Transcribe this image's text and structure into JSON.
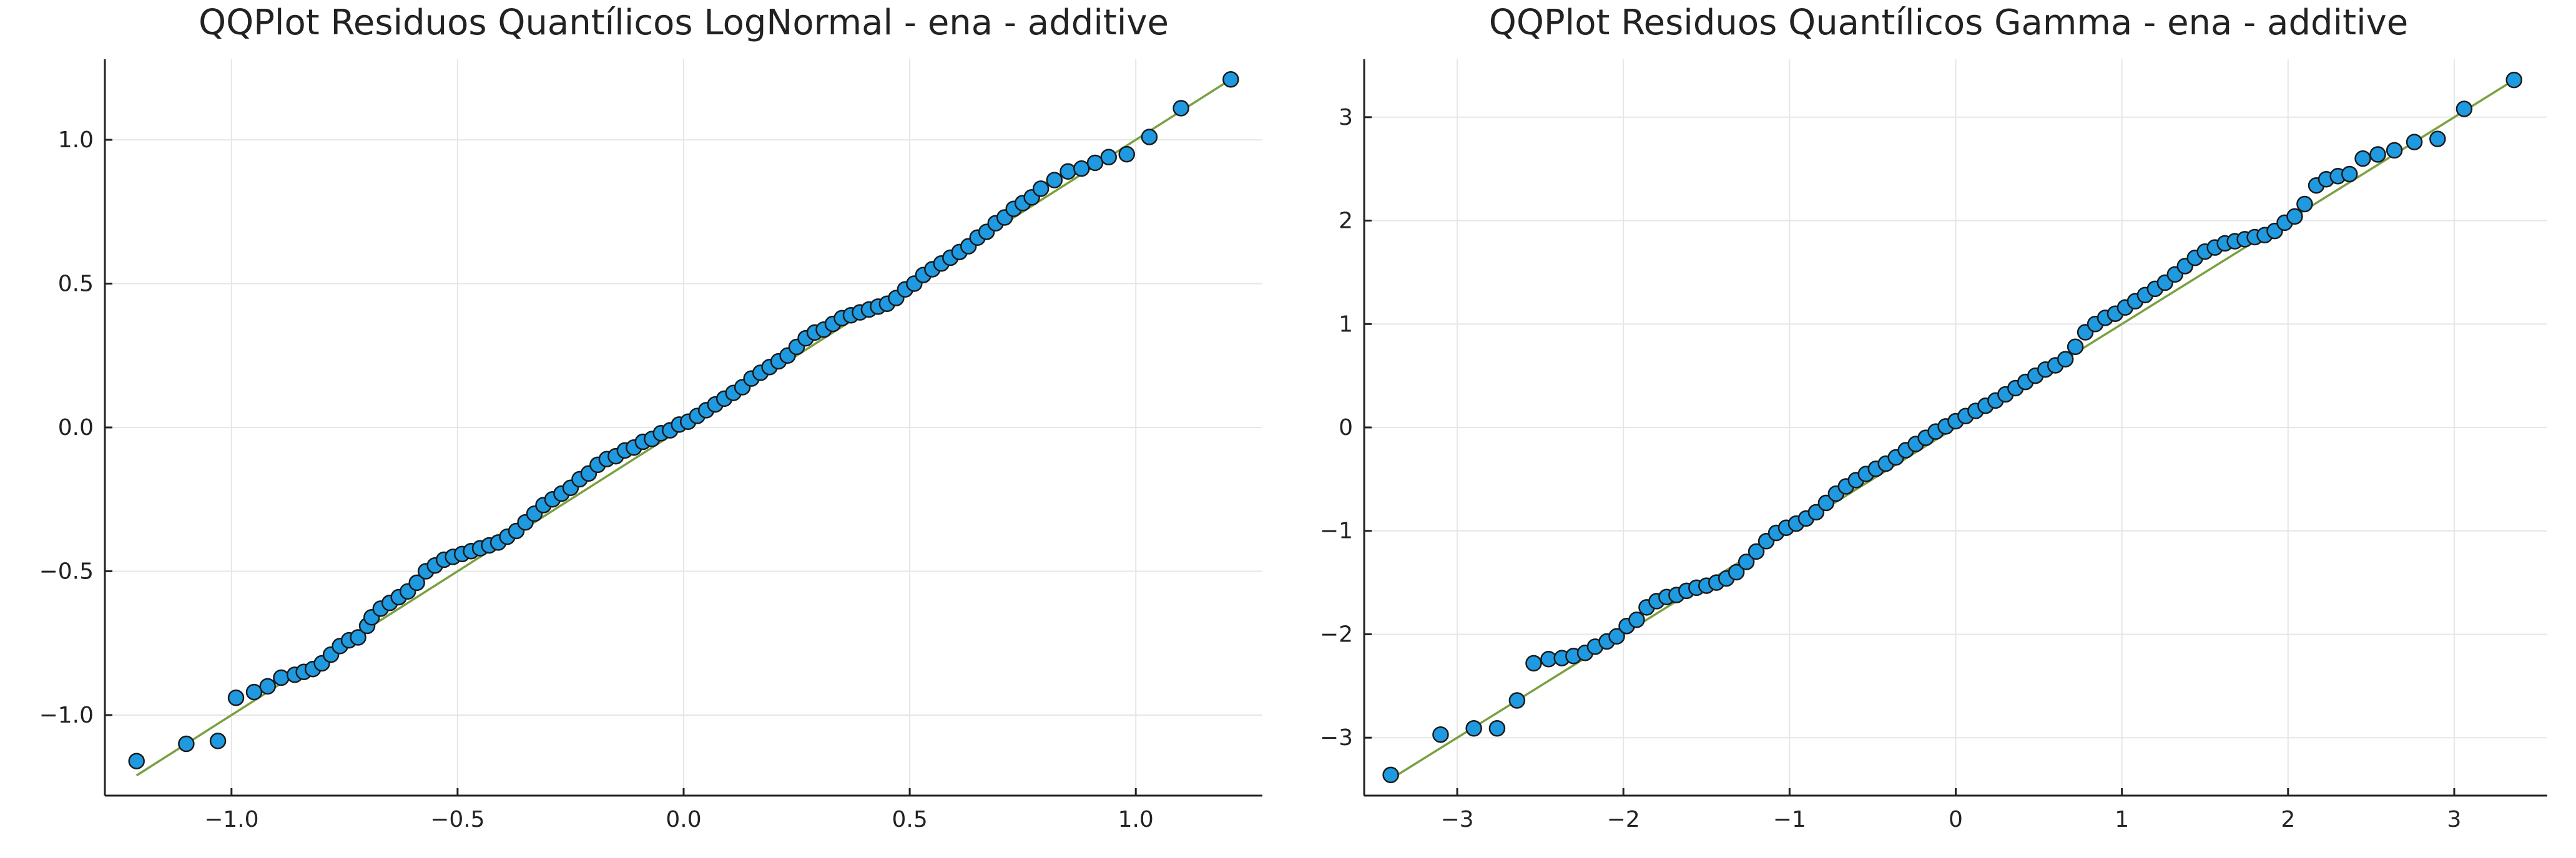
{
  "colors": {
    "points": "#1f9ae0",
    "point_edge": "#1a1a1a",
    "reference_line": "#7aa040",
    "grid": "#e6e6e6"
  },
  "chart_data": [
    {
      "type": "scatter",
      "title": "QQPlot Residuos Quantílicos LogNormal - ena - additive",
      "xlabel": "",
      "ylabel": "",
      "xlim": [
        -1.28,
        1.28
      ],
      "ylim": [
        -1.28,
        1.28
      ],
      "xticks": [
        -1.0,
        -0.5,
        0.0,
        0.5,
        1.0
      ],
      "xtick_labels": [
        "−1.0",
        "−0.5",
        "0.0",
        "0.5",
        "1.0"
      ],
      "yticks": [
        -1.0,
        -0.5,
        0.0,
        0.5,
        1.0
      ],
      "ytick_labels": [
        "−1.0",
        "−0.5",
        "0.0",
        "0.5",
        "1.0"
      ],
      "grid": true,
      "legend": "none",
      "reference_line": {
        "from": [
          -1.21,
          -1.21
        ],
        "to": [
          1.21,
          1.21
        ]
      },
      "x": [
        -1.21,
        -1.1,
        -1.03,
        -0.99,
        -0.95,
        -0.92,
        -0.89,
        -0.86,
        -0.84,
        -0.82,
        -0.8,
        -0.78,
        -0.76,
        -0.74,
        -0.72,
        -0.7,
        -0.69,
        -0.67,
        -0.65,
        -0.63,
        -0.61,
        -0.59,
        -0.57,
        -0.55,
        -0.53,
        -0.51,
        -0.49,
        -0.47,
        -0.45,
        -0.43,
        -0.41,
        -0.39,
        -0.37,
        -0.35,
        -0.33,
        -0.31,
        -0.29,
        -0.27,
        -0.25,
        -0.23,
        -0.21,
        -0.19,
        -0.17,
        -0.15,
        -0.13,
        -0.11,
        -0.09,
        -0.07,
        -0.05,
        -0.03,
        -0.01,
        0.01,
        0.03,
        0.05,
        0.07,
        0.09,
        0.11,
        0.13,
        0.15,
        0.17,
        0.19,
        0.21,
        0.23,
        0.25,
        0.27,
        0.29,
        0.31,
        0.33,
        0.35,
        0.37,
        0.39,
        0.41,
        0.43,
        0.45,
        0.47,
        0.49,
        0.51,
        0.53,
        0.55,
        0.57,
        0.59,
        0.61,
        0.63,
        0.65,
        0.67,
        0.69,
        0.71,
        0.73,
        0.75,
        0.77,
        0.79,
        0.82,
        0.85,
        0.88,
        0.91,
        0.94,
        0.98,
        1.03,
        1.1,
        1.21
      ],
      "y": [
        -1.16,
        -1.1,
        -1.09,
        -0.94,
        -0.92,
        -0.9,
        -0.87,
        -0.86,
        -0.85,
        -0.84,
        -0.82,
        -0.79,
        -0.76,
        -0.74,
        -0.73,
        -0.69,
        -0.66,
        -0.63,
        -0.61,
        -0.59,
        -0.57,
        -0.54,
        -0.5,
        -0.48,
        -0.46,
        -0.45,
        -0.44,
        -0.43,
        -0.42,
        -0.41,
        -0.4,
        -0.38,
        -0.36,
        -0.33,
        -0.3,
        -0.27,
        -0.25,
        -0.23,
        -0.21,
        -0.18,
        -0.16,
        -0.13,
        -0.11,
        -0.1,
        -0.08,
        -0.07,
        -0.05,
        -0.04,
        -0.02,
        -0.01,
        0.01,
        0.02,
        0.04,
        0.06,
        0.08,
        0.1,
        0.12,
        0.14,
        0.17,
        0.19,
        0.21,
        0.23,
        0.25,
        0.28,
        0.31,
        0.33,
        0.34,
        0.36,
        0.38,
        0.39,
        0.4,
        0.41,
        0.42,
        0.43,
        0.45,
        0.48,
        0.5,
        0.53,
        0.55,
        0.57,
        0.59,
        0.61,
        0.63,
        0.66,
        0.68,
        0.71,
        0.73,
        0.76,
        0.78,
        0.8,
        0.83,
        0.86,
        0.89,
        0.9,
        0.92,
        0.94,
        0.95,
        1.01,
        1.11,
        1.21
      ]
    },
    {
      "type": "scatter",
      "title": "QQPlot Residuos Quantílicos Gamma - ena - additive",
      "xlabel": "",
      "ylabel": "",
      "xlim": [
        -3.56,
        3.56
      ],
      "ylim": [
        -3.56,
        3.56
      ],
      "xticks": [
        -3,
        -2,
        -1,
        0,
        1,
        2,
        3
      ],
      "xtick_labels": [
        "−3",
        "−2",
        "−1",
        "0",
        "1",
        "2",
        "3"
      ],
      "yticks": [
        -3,
        -2,
        -1,
        0,
        1,
        2,
        3
      ],
      "ytick_labels": [
        "−3",
        "−2",
        "−1",
        "0",
        "1",
        "2",
        "3"
      ],
      "grid": true,
      "legend": "none",
      "reference_line": {
        "from": [
          -3.4,
          -3.4
        ],
        "to": [
          3.36,
          3.36
        ]
      },
      "x": [
        -3.4,
        -3.1,
        -2.9,
        -2.76,
        -2.64,
        -2.54,
        -2.45,
        -2.37,
        -2.3,
        -2.23,
        -2.17,
        -2.1,
        -2.04,
        -1.98,
        -1.92,
        -1.86,
        -1.8,
        -1.74,
        -1.68,
        -1.62,
        -1.56,
        -1.5,
        -1.44,
        -1.38,
        -1.32,
        -1.26,
        -1.2,
        -1.14,
        -1.08,
        -1.02,
        -0.96,
        -0.9,
        -0.84,
        -0.78,
        -0.72,
        -0.66,
        -0.6,
        -0.54,
        -0.48,
        -0.42,
        -0.36,
        -0.3,
        -0.24,
        -0.18,
        -0.12,
        -0.06,
        0.0,
        0.06,
        0.12,
        0.18,
        0.24,
        0.3,
        0.36,
        0.42,
        0.48,
        0.54,
        0.6,
        0.66,
        0.72,
        0.78,
        0.84,
        0.9,
        0.96,
        1.02,
        1.08,
        1.14,
        1.2,
        1.26,
        1.32,
        1.38,
        1.44,
        1.5,
        1.56,
        1.62,
        1.68,
        1.74,
        1.8,
        1.86,
        1.92,
        1.98,
        2.04,
        2.1,
        2.17,
        2.23,
        2.3,
        2.37,
        2.45,
        2.54,
        2.64,
        2.76,
        2.9,
        3.06,
        3.36
      ],
      "y": [
        -3.36,
        -2.97,
        -2.91,
        -2.91,
        -2.64,
        -2.28,
        -2.24,
        -2.23,
        -2.21,
        -2.18,
        -2.12,
        -2.07,
        -2.02,
        -1.92,
        -1.86,
        -1.74,
        -1.68,
        -1.64,
        -1.62,
        -1.58,
        -1.55,
        -1.53,
        -1.5,
        -1.46,
        -1.4,
        -1.3,
        -1.2,
        -1.1,
        -1.02,
        -0.97,
        -0.93,
        -0.88,
        -0.82,
        -0.73,
        -0.64,
        -0.57,
        -0.51,
        -0.45,
        -0.4,
        -0.35,
        -0.29,
        -0.22,
        -0.16,
        -0.1,
        -0.04,
        0.01,
        0.06,
        0.11,
        0.16,
        0.21,
        0.26,
        0.32,
        0.38,
        0.44,
        0.5,
        0.56,
        0.6,
        0.66,
        0.78,
        0.92,
        1.0,
        1.06,
        1.1,
        1.16,
        1.22,
        1.28,
        1.34,
        1.4,
        1.48,
        1.56,
        1.64,
        1.7,
        1.74,
        1.78,
        1.8,
        1.82,
        1.84,
        1.86,
        1.9,
        1.98,
        2.04,
        2.16,
        2.34,
        2.4,
        2.43,
        2.45,
        2.6,
        2.64,
        2.68,
        2.76,
        2.79,
        3.08,
        3.36
      ]
    }
  ]
}
